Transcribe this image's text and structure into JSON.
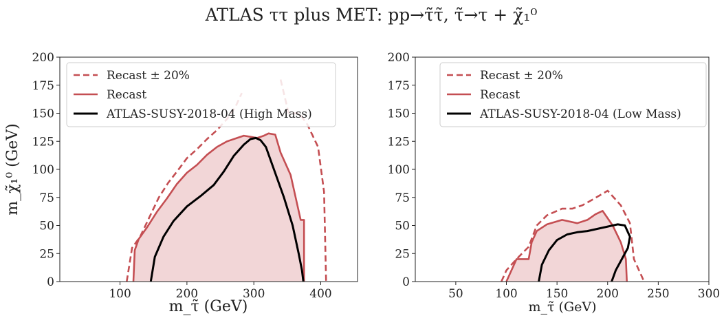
{
  "figure": {
    "title": "ATLAS ττ plus MET: pp→τ̃τ̃, τ̃→τ + χ̃₁⁰"
  },
  "colors": {
    "recast": "#c44e52",
    "fill": "#f2d6d7",
    "atlas": "#000000",
    "axis": "#222222"
  },
  "chart_data": [
    {
      "type": "area",
      "xlabel": "m_τ̃ (GeV)",
      "ylabel": "m_χ̃₁⁰ (GeV)",
      "xlim": [
        10,
        455
      ],
      "ylim": [
        0,
        200
      ],
      "xticks": [
        100,
        200,
        300,
        400
      ],
      "yticks": [
        0,
        25,
        50,
        75,
        100,
        125,
        150,
        175,
        200
      ],
      "legend_position": "upper-left",
      "legend": [
        "Recast ± 20%",
        "Recast",
        "ATLAS-SUSY-2018-04 (High Mass)"
      ],
      "series": [
        {
          "name": "Recast ± 20%",
          "style": "dashed",
          "x": [
            110,
            118,
            130,
            142,
            158,
            172,
            185,
            200,
            215,
            230,
            245,
            260,
            272,
            282
          ],
          "y": [
            0,
            30,
            40,
            55,
            75,
            88,
            98,
            110,
            118,
            127,
            135,
            145,
            155,
            168
          ]
        },
        {
          "name": "Recast ± 20%",
          "style": "dashed",
          "x": [
            340,
            352,
            368,
            380,
            388,
            396,
            405,
            408
          ],
          "y": [
            180,
            150,
            150,
            140,
            130,
            120,
            80,
            0
          ]
        },
        {
          "name": "Recast ± 20%",
          "style": "dashed",
          "x": [
            122,
            127,
            140,
            155,
            170,
            185,
            200,
            215,
            230,
            250,
            265,
            280,
            295,
            305,
            312,
            322,
            330,
            340,
            348,
            352
          ],
          "y": [
            0,
            22,
            35,
            50,
            65,
            75,
            82,
            90,
            98,
            107,
            112,
            115,
            113,
            112,
            100,
            85,
            65,
            50,
            15,
            0
          ]
        },
        {
          "name": "Recast",
          "style": "solid",
          "fill": true,
          "x": [
            120,
            122,
            128,
            140,
            155,
            170,
            185,
            200,
            215,
            230,
            245,
            260,
            275,
            285,
            295,
            305,
            315,
            322,
            332,
            340,
            355,
            370,
            375,
            375
          ],
          "y": [
            0,
            28,
            38,
            48,
            62,
            74,
            87,
            97,
            104,
            113,
            120,
            125,
            128,
            130,
            129,
            128,
            130,
            132,
            131,
            115,
            95,
            55,
            55,
            0
          ]
        },
        {
          "name": "ATLAS-SUSY-2018-04 (High Mass)",
          "style": "solid",
          "x": [
            146,
            152,
            165,
            180,
            200,
            220,
            240,
            255,
            270,
            285,
            295,
            303,
            310,
            318,
            330,
            345,
            358,
            367,
            372,
            374
          ],
          "y": [
            0,
            22,
            40,
            54,
            67,
            76,
            86,
            98,
            112,
            122,
            127,
            128,
            126,
            120,
            100,
            75,
            50,
            25,
            10,
            0
          ]
        }
      ]
    },
    {
      "type": "area",
      "xlabel": "m_τ̃ (GeV)",
      "ylabel": "",
      "xlim": [
        10,
        300
      ],
      "ylim": [
        0,
        200
      ],
      "xticks": [
        50,
        100,
        150,
        200,
        250,
        300
      ],
      "yticks": [
        0,
        25,
        50,
        75,
        100,
        125,
        150,
        175,
        200
      ],
      "legend_position": "upper-left",
      "legend": [
        "Recast ± 20%",
        "Recast",
        "ATLAS-SUSY-2018-04 (Low Mass)"
      ],
      "series": [
        {
          "name": "Recast ± 20%",
          "style": "dashed",
          "x": [
            95,
            100,
            110,
            122,
            130,
            140,
            155,
            165,
            175,
            185,
            200,
            213,
            222,
            226,
            236
          ],
          "y": [
            0,
            10,
            20,
            31,
            50,
            59,
            65,
            65,
            68,
            73,
            81,
            68,
            52,
            20,
            0
          ]
        },
        {
          "name": "Recast ± 20%",
          "style": "dashed",
          "x": [
            115,
            122,
            128,
            138,
            145,
            155,
            165,
            175,
            185,
            192,
            193,
            193
          ],
          "y": [
            0,
            10,
            11,
            20,
            40,
            43,
            46,
            45,
            43,
            37,
            20,
            0
          ]
        },
        {
          "name": "Recast",
          "style": "solid",
          "fill": true,
          "x": [
            100,
            110,
            122,
            125,
            130,
            140,
            155,
            170,
            180,
            188,
            195,
            205,
            213,
            218,
            219
          ],
          "y": [
            0,
            20,
            20,
            35,
            45,
            51,
            55,
            52,
            55,
            60,
            63,
            50,
            35,
            20,
            0
          ]
        },
        {
          "name": "ATLAS-SUSY-2018-04 (Low Mass)",
          "style": "solid",
          "x": [
            132,
            135,
            142,
            150,
            160,
            170,
            180,
            190,
            200,
            210,
            217,
            222,
            220,
            214,
            208,
            204
          ],
          "y": [
            0,
            15,
            28,
            37,
            42,
            44,
            45,
            47,
            49,
            51,
            50,
            40,
            30,
            20,
            10,
            0
          ]
        }
      ]
    }
  ]
}
